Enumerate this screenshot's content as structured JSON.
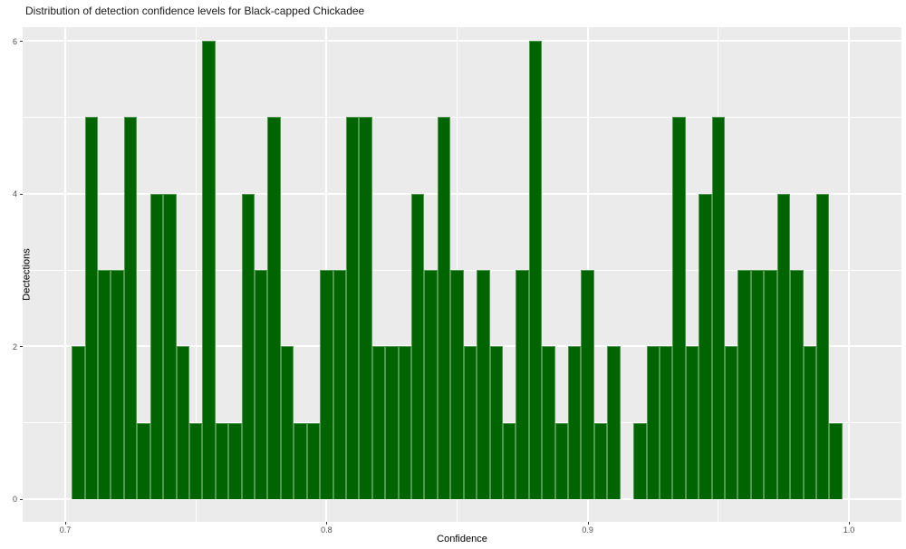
{
  "title": "Distribution of detection confidence levels for Black-capped Chickadee",
  "chart_data": {
    "type": "bar",
    "subtype": "histogram",
    "title": "Distribution of detection confidence levels for Black-capped Chickadee",
    "xlabel": "Confidence",
    "ylabel": "Dectections",
    "bin_start": 0.7025,
    "bin_width": 0.005,
    "counts": [
      2,
      5,
      3,
      3,
      5,
      1,
      4,
      4,
      2,
      1,
      6,
      1,
      1,
      4,
      3,
      5,
      2,
      1,
      1,
      3,
      3,
      5,
      5,
      2,
      2,
      2,
      4,
      3,
      5,
      3,
      2,
      3,
      2,
      1,
      3,
      6,
      2,
      1,
      2,
      3,
      1,
      2,
      0,
      1,
      2,
      2,
      5,
      2,
      4,
      5,
      2,
      3,
      3,
      3,
      4,
      3,
      2,
      4,
      1
    ],
    "x_ticks": [
      0.7,
      0.8,
      0.9,
      1.0
    ],
    "x_tick_labels": [
      "0.7",
      "0.8",
      "0.9",
      "1.0"
    ],
    "x_minor_ticks": [
      0.75,
      0.85,
      0.95
    ],
    "y_ticks": [
      0,
      2,
      4,
      6
    ],
    "y_tick_labels": [
      "0",
      "2",
      "4",
      "6"
    ],
    "y_minor_ticks": [
      1,
      3,
      5
    ],
    "xlim": [
      0.6837,
      1.0201
    ],
    "ylim": [
      -0.2966,
      6.1803
    ],
    "grid": "on",
    "legend_position": "none",
    "colors": {
      "bar_fill": "#006400",
      "bar_border": "#4f9a4f",
      "panel_background": "#ebebeb",
      "grid": "#ffffff",
      "tick_label": "#4d4d4d",
      "axis_title": "#000000",
      "title": "#1a1a1a",
      "tick_mark": "#333333"
    }
  }
}
